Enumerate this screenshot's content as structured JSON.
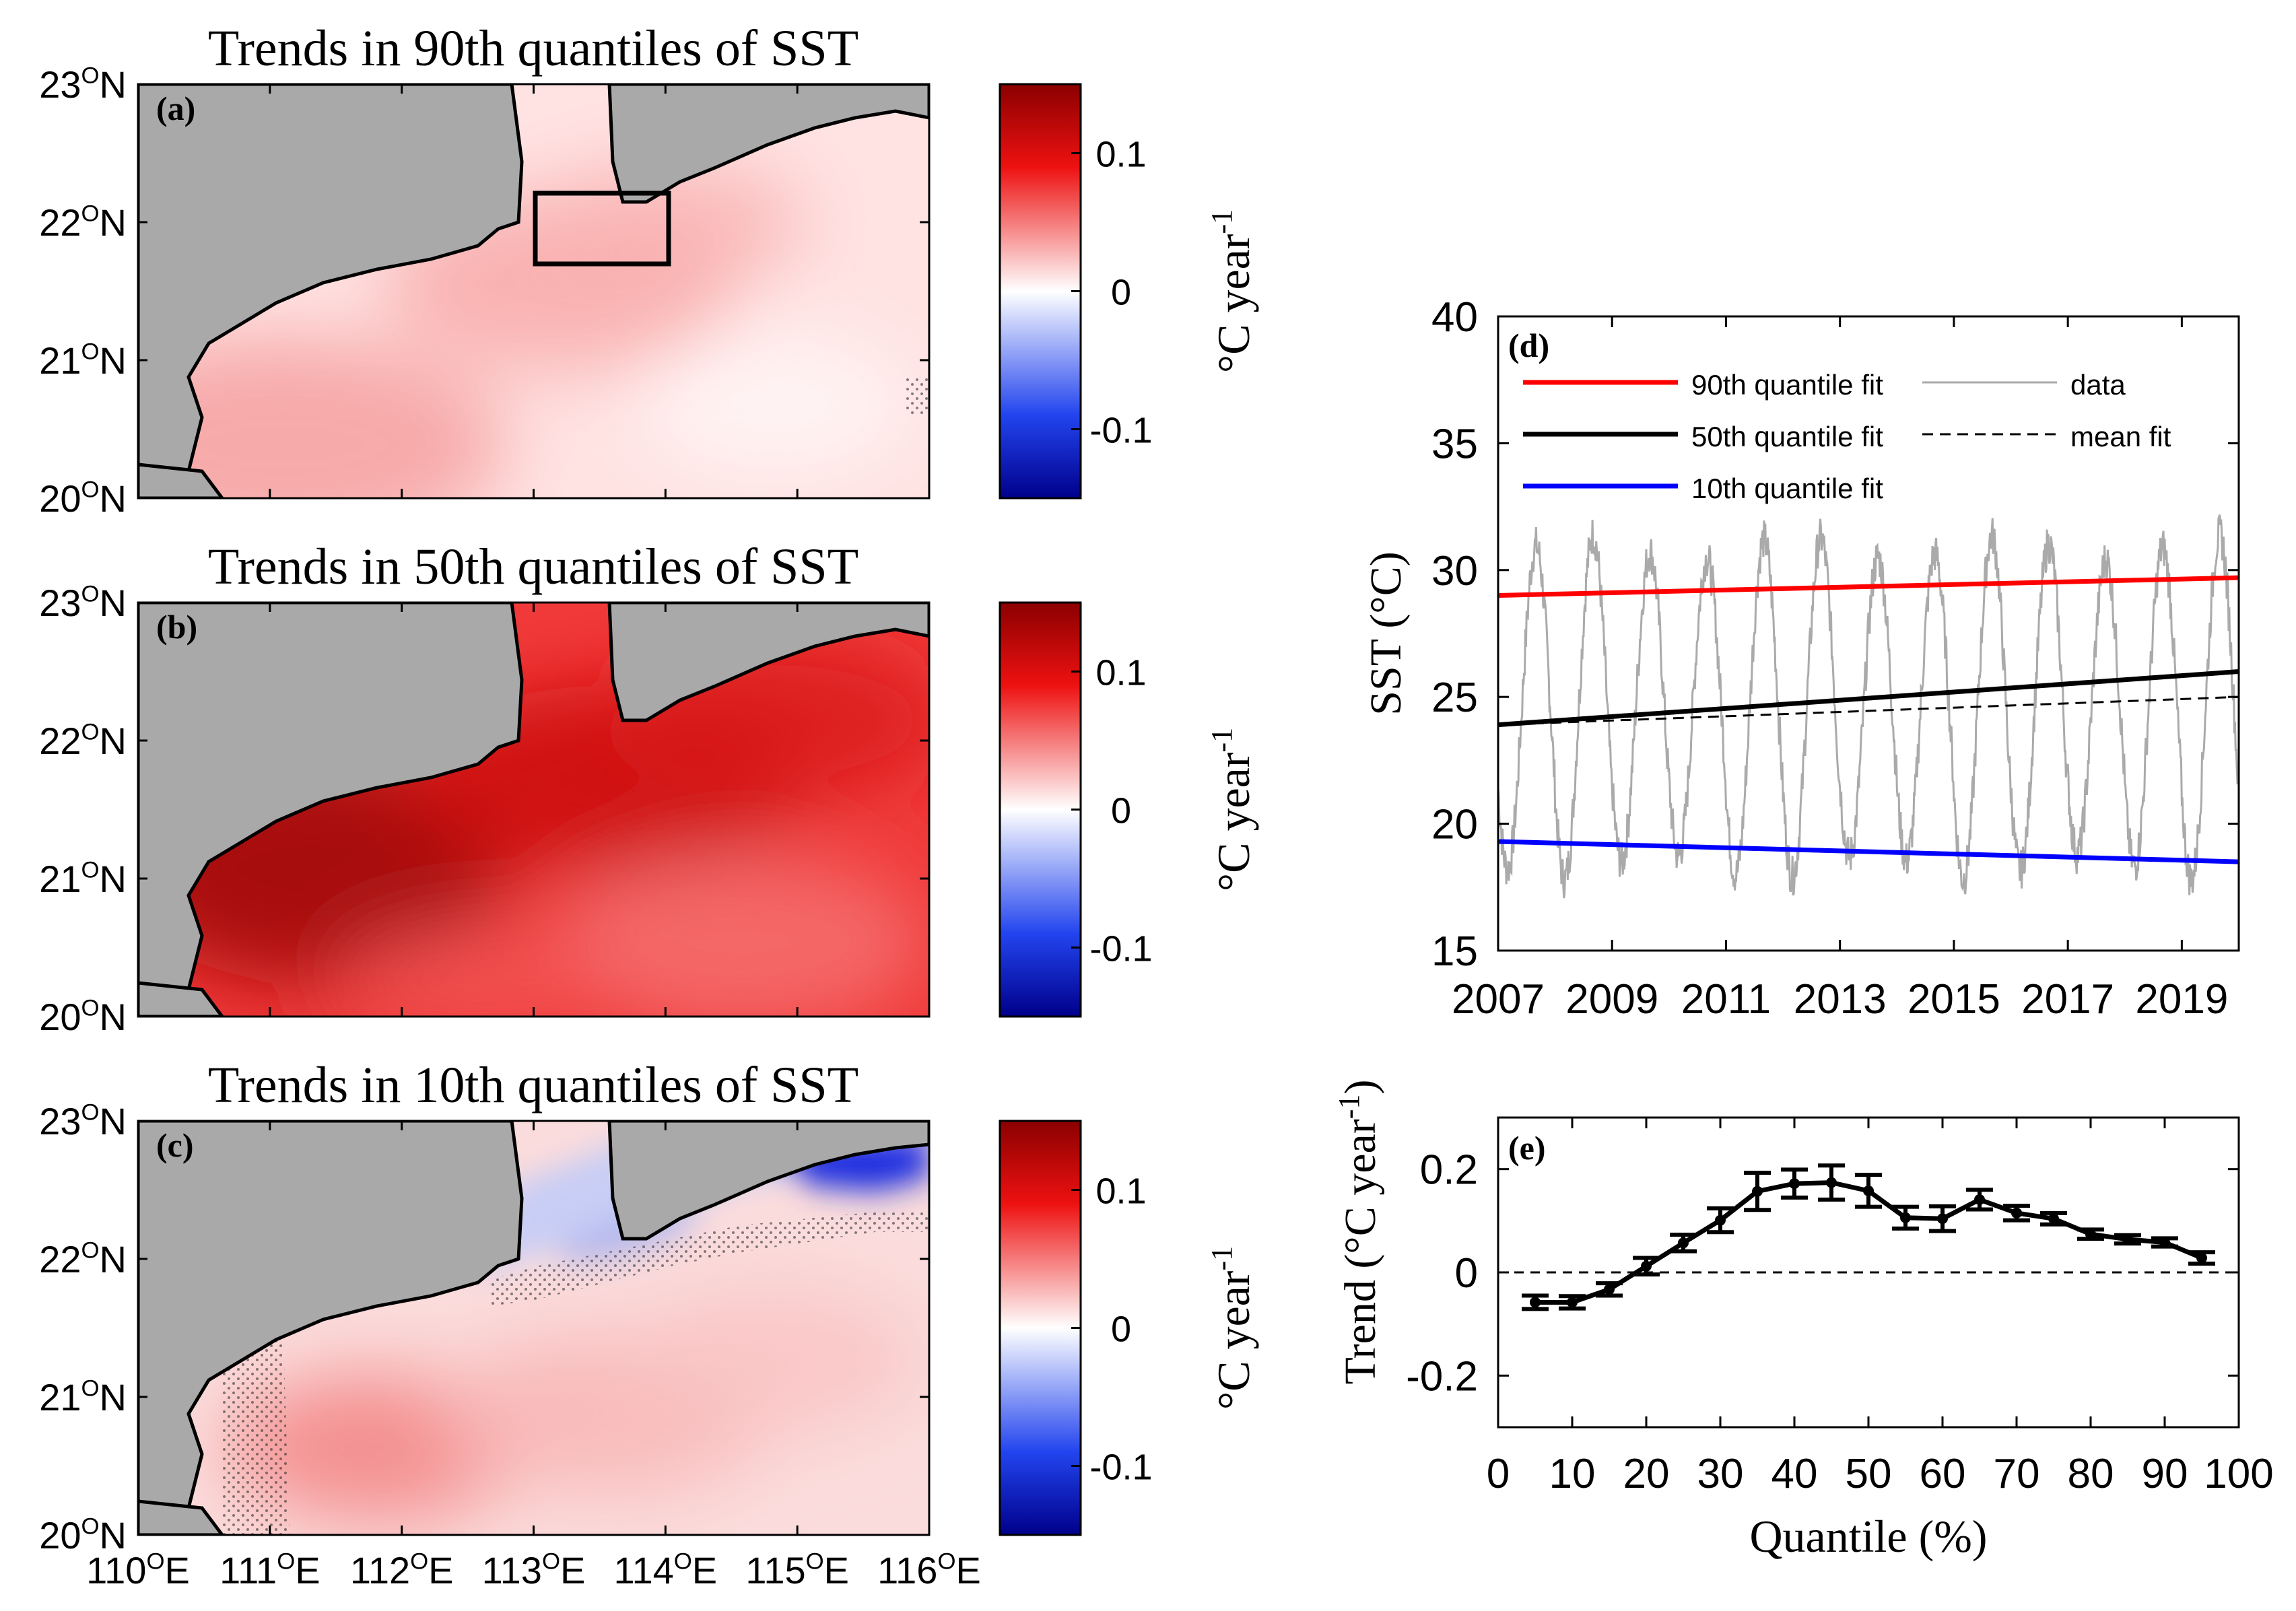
{
  "maps": [
    {
      "id": "a",
      "title": "Trends in 90th quantiles of SST",
      "panel_label": "(a)",
      "mode": "q90"
    },
    {
      "id": "b",
      "title": "Trends in 50th quantiles of SST",
      "panel_label": "(b)",
      "mode": "q50"
    },
    {
      "id": "c",
      "title": "Trends in 10th quantiles of SST",
      "panel_label": "(c)",
      "mode": "q10"
    }
  ],
  "map_axes": {
    "lat_ticks": [
      {
        "base": "23",
        "sup": "O",
        "suffix": "N"
      },
      {
        "base": "22",
        "sup": "O",
        "suffix": "N"
      },
      {
        "base": "21",
        "sup": "O",
        "suffix": "N"
      },
      {
        "base": "20",
        "sup": "O",
        "suffix": "N"
      }
    ],
    "lon_ticks": [
      {
        "base": "110",
        "sup": "O",
        "suffix": "E"
      },
      {
        "base": "111",
        "sup": "O",
        "suffix": "E"
      },
      {
        "base": "112",
        "sup": "O",
        "suffix": "E"
      },
      {
        "base": "113",
        "sup": "O",
        "suffix": "E"
      },
      {
        "base": "114",
        "sup": "O",
        "suffix": "E"
      },
      {
        "base": "115",
        "sup": "O",
        "suffix": "E"
      },
      {
        "base": "116",
        "sup": "O",
        "suffix": "E"
      }
    ],
    "lat_range": [
      20,
      23
    ],
    "lon_range": [
      110,
      116
    ],
    "highlight_box": {
      "lon": [
        113,
        114
      ],
      "lat": [
        21.7,
        22.2
      ]
    }
  },
  "colorbar": {
    "ticks": [
      "0.1",
      "0",
      "-0.1"
    ],
    "tick_values": [
      0.1,
      0,
      -0.1
    ],
    "range": [
      -0.15,
      0.15
    ],
    "label_main": "°C year",
    "label_sup": "-1",
    "colors": {
      "neg_end": "#00008b",
      "neg": "#2244ee",
      "zero": "#ffffff",
      "pos": "#ee1111",
      "pos_end": "#8b0000"
    }
  },
  "land_color": "#a9a9a9",
  "chart_data": [
    {
      "type": "line",
      "panel_label": "(d)",
      "ylabel": "SST (°C)",
      "xlabel": "",
      "xlim": [
        2007,
        2020
      ],
      "ylim": [
        15,
        40
      ],
      "x_ticks": [
        "2007",
        "2009",
        "2011",
        "2013",
        "2015",
        "2017",
        "2019"
      ],
      "x_tick_values": [
        2007,
        2009,
        2011,
        2013,
        2015,
        2017,
        2019
      ],
      "y_ticks": [
        "40",
        "35",
        "30",
        "25",
        "20",
        "15"
      ],
      "y_tick_values": [
        40,
        35,
        30,
        25,
        20,
        15
      ],
      "series": [
        {
          "name": "90th quantile fit",
          "color": "#ff0000",
          "x": [
            2007,
            2020
          ],
          "y": [
            29.0,
            29.7
          ]
        },
        {
          "name": "50th quantile fit",
          "color": "#000000",
          "x": [
            2007,
            2020
          ],
          "y": [
            23.9,
            26.0
          ]
        },
        {
          "name": "10th quantile fit",
          "color": "#0000ff",
          "x": [
            2007,
            2020
          ],
          "y": [
            19.3,
            18.5
          ]
        },
        {
          "name": "data",
          "color": "#aaaaaa",
          "seasonal": {
            "mean": 24.6,
            "amplitude": 6.3,
            "peak_month": 8
          }
        },
        {
          "name": "mean fit",
          "color": "#000000",
          "dashed": true,
          "x": [
            2007,
            2020
          ],
          "y": [
            23.9,
            25.0
          ]
        }
      ],
      "legend": [
        {
          "label": "90th quantile fit",
          "color": "#ff0000"
        },
        {
          "label": "50th quantile fit",
          "color": "#000000"
        },
        {
          "label": "10th quantile fit",
          "color": "#0000ff"
        },
        {
          "label": "data",
          "color": "#aaaaaa"
        },
        {
          "label": "mean fit",
          "color": "#000000",
          "dashed": true
        }
      ],
      "legend_position": "top-left"
    },
    {
      "type": "line",
      "panel_label": "(e)",
      "ylabel": "Trend (°C year",
      "ylabel_sup": "-1",
      "ylabel_close": ")",
      "xlabel": "Quantile (%)",
      "xlim": [
        0,
        100
      ],
      "ylim": [
        -0.3,
        0.3
      ],
      "x_ticks": [
        "0",
        "10",
        "20",
        "30",
        "40",
        "50",
        "60",
        "70",
        "80",
        "90",
        "100"
      ],
      "x_tick_values": [
        0,
        10,
        20,
        30,
        40,
        50,
        60,
        70,
        80,
        90,
        100
      ],
      "y_ticks": [
        "0.2",
        "0",
        "-0.2"
      ],
      "y_tick_values": [
        0.2,
        0,
        -0.2
      ],
      "zero_line": true,
      "series": [
        {
          "name": "trend",
          "x": [
            5,
            10,
            15,
            20,
            25,
            30,
            35,
            40,
            45,
            50,
            55,
            60,
            65,
            70,
            75,
            80,
            85,
            90,
            95
          ],
          "y": [
            -0.058,
            -0.058,
            -0.033,
            0.012,
            0.057,
            0.101,
            0.157,
            0.172,
            0.174,
            0.158,
            0.106,
            0.104,
            0.141,
            0.115,
            0.104,
            0.074,
            0.064,
            0.058,
            0.028
          ],
          "err": [
            0.013,
            0.012,
            0.012,
            0.016,
            0.016,
            0.023,
            0.036,
            0.027,
            0.033,
            0.031,
            0.021,
            0.024,
            0.019,
            0.014,
            0.011,
            0.009,
            0.008,
            0.008,
            0.011
          ]
        }
      ]
    }
  ]
}
